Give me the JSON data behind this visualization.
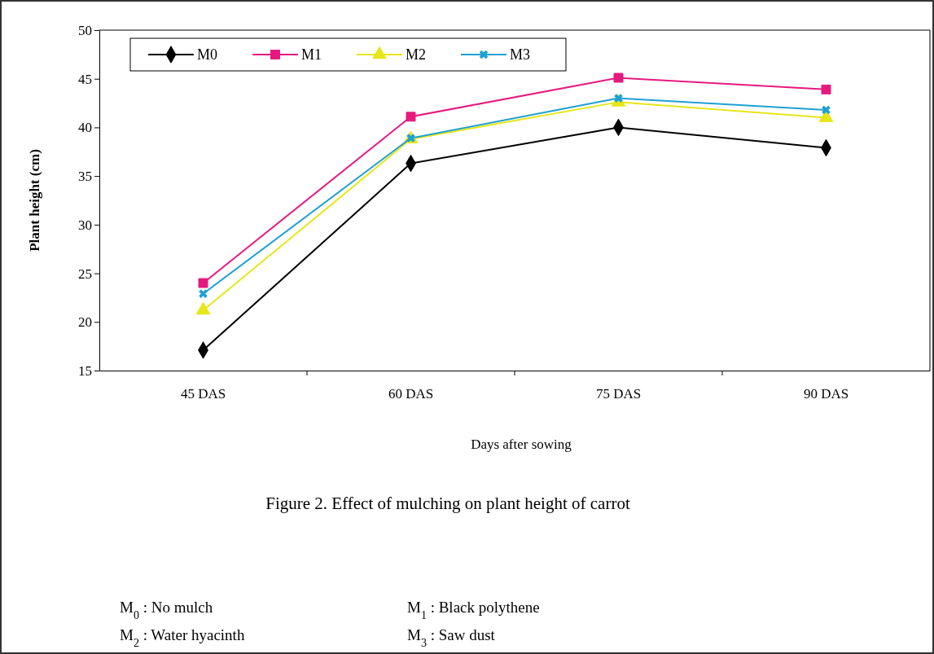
{
  "chart_data": {
    "type": "line",
    "xlabel": "Days after sowing",
    "ylabel": "Plant height (cm)",
    "categories": [
      "45 DAS",
      "60 DAS",
      "75 DAS",
      "90 DAS"
    ],
    "series": [
      {
        "name": "M0",
        "color": "#000000",
        "marker": "diamond",
        "values": [
          17.1,
          36.3,
          40.0,
          37.9
        ]
      },
      {
        "name": "M1",
        "color": "#e6197f",
        "marker": "square",
        "values": [
          24.0,
          41.1,
          45.1,
          43.9
        ]
      },
      {
        "name": "M2",
        "color": "#e6e619",
        "marker": "triangle",
        "values": [
          21.2,
          38.8,
          42.6,
          41.0
        ]
      },
      {
        "name": "M3",
        "color": "#1ea0d2",
        "marker": "cross",
        "values": [
          22.9,
          38.9,
          43.0,
          41.8
        ]
      }
    ],
    "ylim": [
      15,
      50
    ],
    "yticks": [
      15,
      20,
      25,
      30,
      35,
      40,
      45,
      50
    ],
    "grid": false,
    "legend": "top left",
    "annotations": [
      "Figure 2. Effect of mulching on plant height of carrot",
      "M$_{0}$ : No mulch",
      "M$_{1}$ : Black polythene",
      "M$_{2}$ : Water hyacinth",
      "M$_{3}$ : Saw dust"
    ]
  }
}
